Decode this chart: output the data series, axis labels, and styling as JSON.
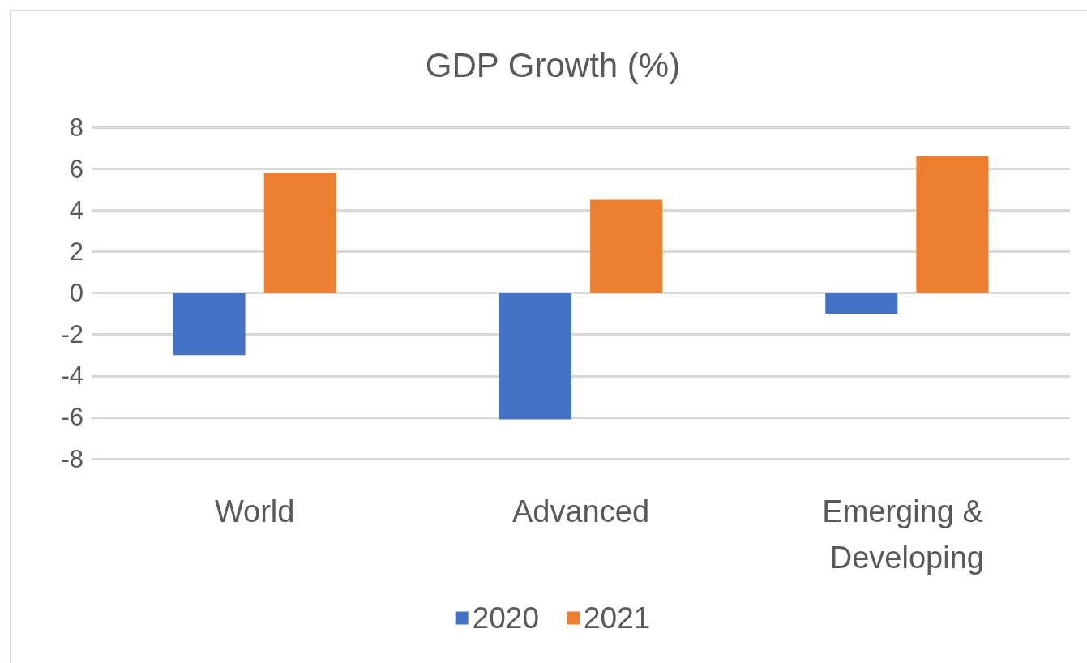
{
  "chart_data": {
    "type": "bar",
    "title": "GDP Growth (%)",
    "categories": [
      "World",
      "Advanced",
      "Emerging & Developing"
    ],
    "series": [
      {
        "name": "2020",
        "color": "#4472c4",
        "values": [
          -3.0,
          -6.1,
          -1.0
        ]
      },
      {
        "name": "2021",
        "color": "#ed7d31",
        "values": [
          5.8,
          4.5,
          6.6
        ]
      }
    ],
    "ylim": [
      -8,
      8
    ],
    "yticks": [
      -8,
      -6,
      -4,
      -2,
      0,
      2,
      4,
      6,
      8
    ],
    "grid": true,
    "legend": "bottom"
  }
}
